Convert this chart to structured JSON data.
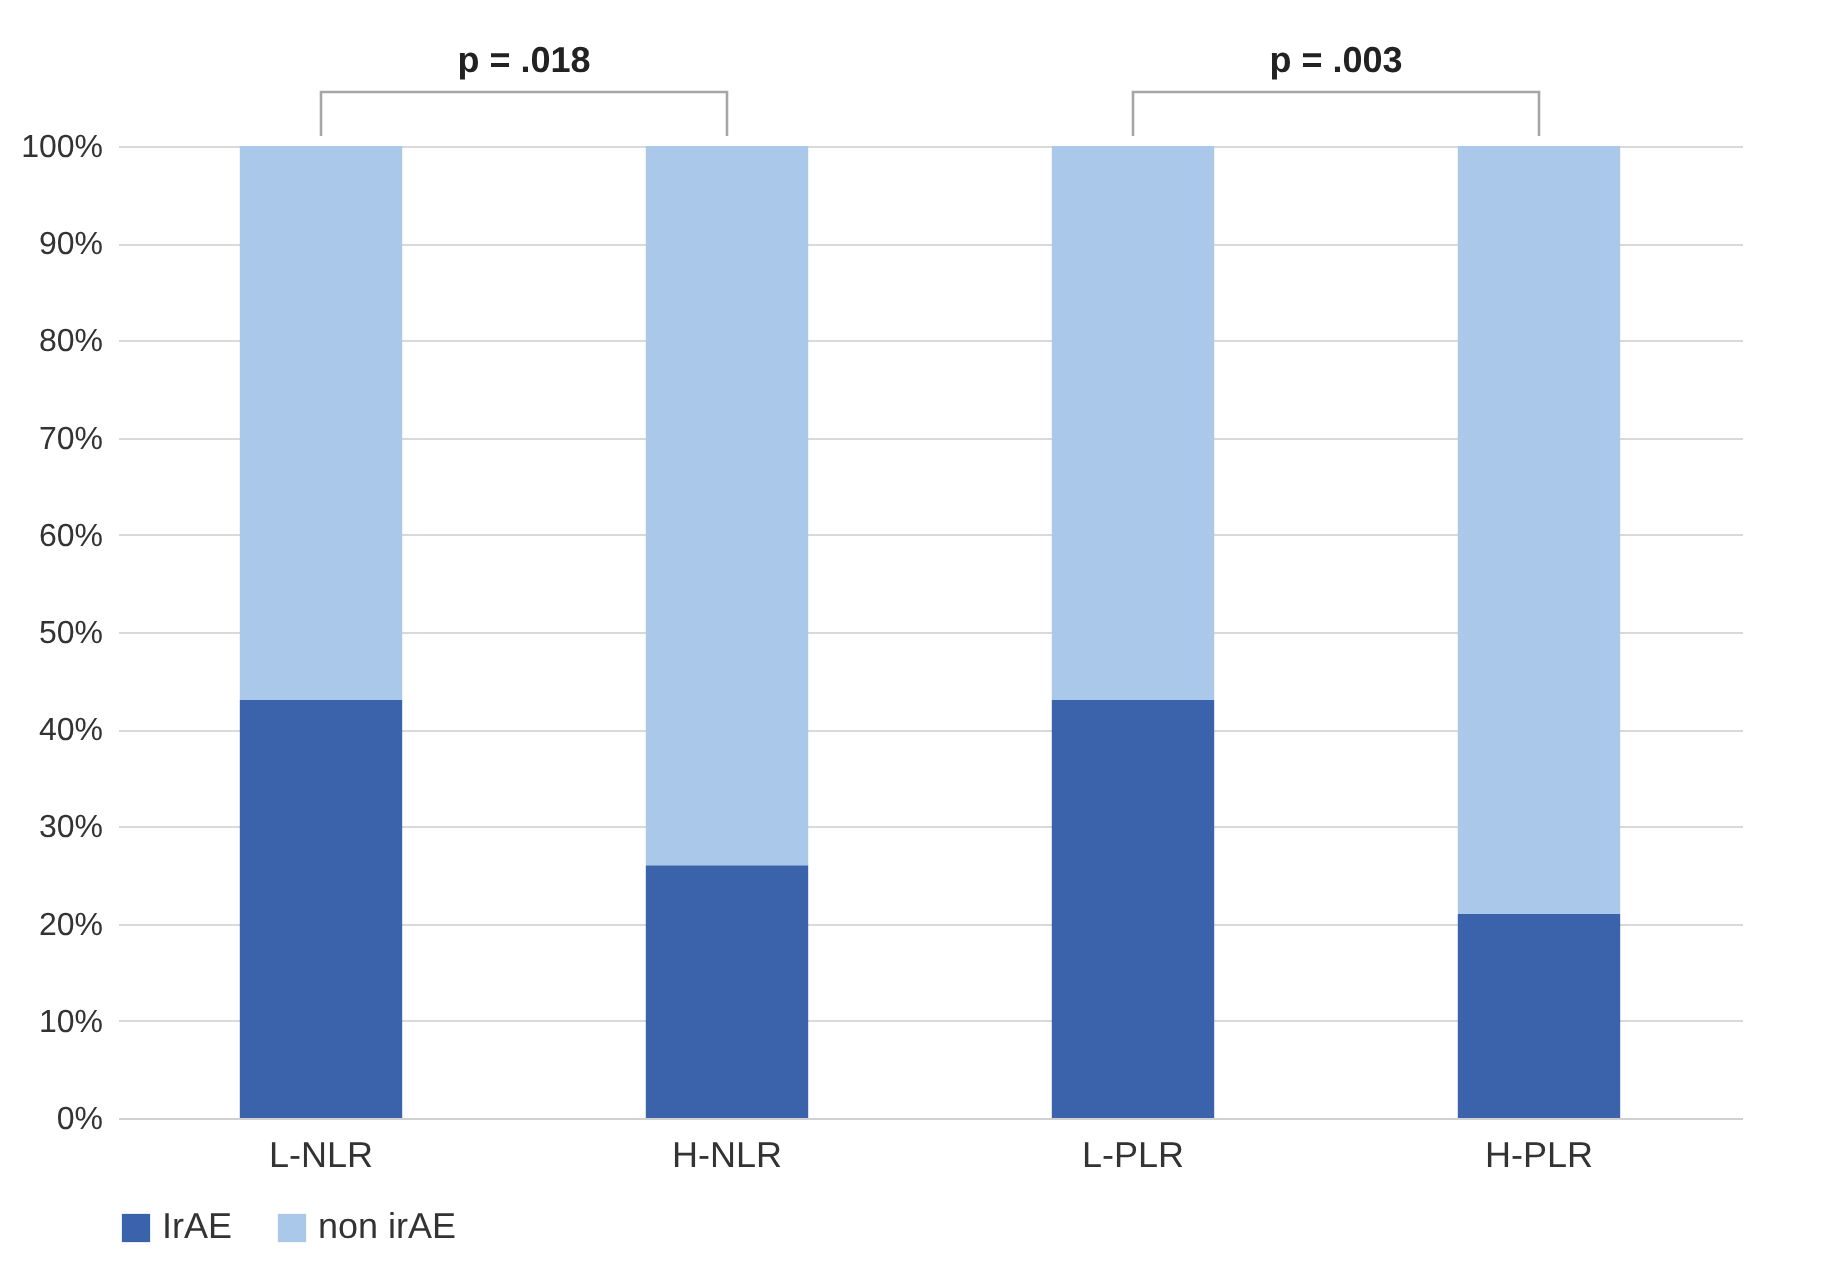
{
  "chart_data": {
    "type": "bar",
    "stacked": true,
    "categories": [
      "L-NLR",
      "H-NLR",
      "L-PLR",
      "H-PLR"
    ],
    "series": [
      {
        "name": "IrAE",
        "color": "#3a63ab",
        "values": [
          43,
          26,
          43,
          21
        ]
      },
      {
        "name": "non irAE",
        "color": "#a9c8ea",
        "values": [
          57,
          74,
          57,
          79
        ]
      }
    ],
    "ylim": [
      0,
      100
    ],
    "yticks": [
      {
        "value": 0,
        "label": "0%"
      },
      {
        "value": 10,
        "label": "10%"
      },
      {
        "value": 20,
        "label": "20%"
      },
      {
        "value": 30,
        "label": "30%"
      },
      {
        "value": 40,
        "label": "40%"
      },
      {
        "value": 50,
        "label": "50%"
      },
      {
        "value": 60,
        "label": "60%"
      },
      {
        "value": 70,
        "label": "70%"
      },
      {
        "value": 80,
        "label": "80%"
      },
      {
        "value": 90,
        "label": "90%"
      },
      {
        "value": 100,
        "label": "100%"
      }
    ],
    "grid": "y",
    "legend": "bottom",
    "annotations": [
      "p = .018",
      "p = .003"
    ]
  }
}
